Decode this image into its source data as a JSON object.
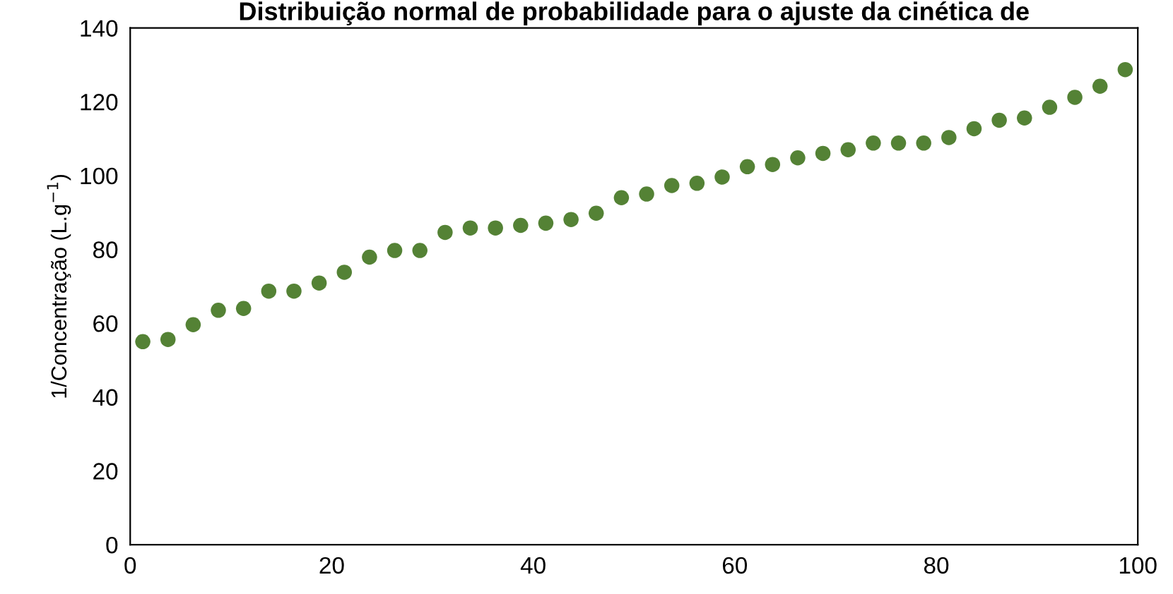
{
  "chart_data": {
    "type": "scatter",
    "title": "Distribuição normal de probabilidade para o ajuste da cinética de",
    "ylabel": "1/Concentração (L.g$^{−1}$)",
    "x": [
      1.25,
      3.75,
      6.25,
      8.75,
      11.25,
      13.75,
      16.25,
      18.75,
      21.25,
      23.75,
      26.25,
      28.75,
      31.25,
      33.75,
      36.25,
      38.75,
      41.25,
      43.75,
      46.25,
      48.75,
      51.25,
      53.75,
      56.25,
      58.75,
      61.25,
      63.75,
      66.25,
      68.75,
      71.25,
      73.75,
      76.25,
      78.75,
      81.25,
      83.75,
      86.25,
      88.75,
      91.25,
      93.75,
      96.25,
      98.75
    ],
    "series": [
      {
        "color": "#548235",
        "values": [
          55.0,
          55.6,
          59.6,
          63.5,
          64.0,
          68.7,
          68.7,
          70.9,
          73.8,
          77.9,
          79.7,
          79.7,
          84.6,
          85.8,
          85.8,
          86.5,
          87.1,
          88.1,
          89.8,
          94.0,
          95.0,
          97.3,
          97.9,
          99.6,
          102.4,
          103.0,
          104.8,
          106.0,
          107.0,
          108.8,
          108.8,
          108.8,
          110.3,
          112.7,
          115.0,
          115.6,
          118.5,
          121.2,
          124.2,
          128.7
        ]
      }
    ],
    "xlim": [
      0,
      100
    ],
    "xticks": [
      0,
      20,
      40,
      60,
      80,
      100
    ],
    "ylim": [
      0,
      140
    ],
    "yticks": [
      0,
      20,
      40,
      60,
      80,
      100,
      120,
      140
    ],
    "marker": "circle",
    "grid": false
  }
}
